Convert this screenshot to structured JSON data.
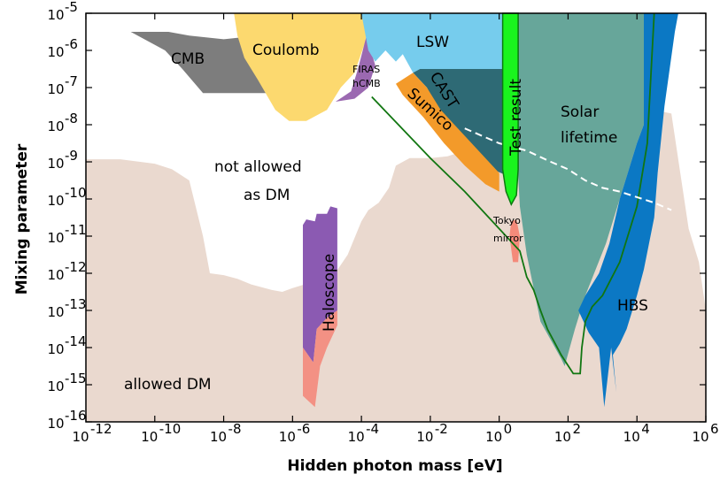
{
  "chart_data": {
    "type": "area",
    "xlabel": "Hidden photon mass [eV]",
    "ylabel": "Mixing parameter",
    "x_scale": "log",
    "y_scale": "log",
    "xlim": [
      1e-12,
      1000000.0
    ],
    "ylim": [
      1e-16,
      1e-05
    ],
    "x_ticks": [
      {
        "exp": "-12",
        "value": 1e-12
      },
      {
        "exp": "-10",
        "value": 1e-10
      },
      {
        "exp": "-8",
        "value": 1e-08
      },
      {
        "exp": "-6",
        "value": 1e-06
      },
      {
        "exp": "-4",
        "value": 0.0001
      },
      {
        "exp": "-2",
        "value": 0.01
      },
      {
        "exp": "0",
        "value": 1
      },
      {
        "exp": "2",
        "value": 100.0
      },
      {
        "exp": "4",
        "value": 10000.0
      },
      {
        "exp": "6",
        "value": 1000000.0
      }
    ],
    "y_ticks": [
      {
        "exp": "-5",
        "value": 1e-05
      },
      {
        "exp": "-6",
        "value": 1e-06
      },
      {
        "exp": "-7",
        "value": 1e-07
      },
      {
        "exp": "-8",
        "value": 1e-08
      },
      {
        "exp": "-9",
        "value": 1e-09
      },
      {
        "exp": "-10",
        "value": 1e-10
      },
      {
        "exp": "-11",
        "value": 1e-11
      },
      {
        "exp": "-12",
        "value": 1e-12
      },
      {
        "exp": "-13",
        "value": 1e-13
      },
      {
        "exp": "-14",
        "value": 1e-14
      },
      {
        "exp": "-15",
        "value": 1e-15
      },
      {
        "exp": "-16",
        "value": 1e-16
      }
    ],
    "tick_base": "10",
    "regions": [
      {
        "label": "allowed DM",
        "color": "#ead9cf",
        "points": [
          [
            -12,
            -8.93
          ],
          [
            -11,
            -8.93
          ],
          [
            -10,
            -9.05
          ],
          [
            -9.5,
            -9.2
          ],
          [
            -9,
            -9.5
          ],
          [
            -8.6,
            -11
          ],
          [
            -8.4,
            -12
          ],
          [
            -8,
            -12.05
          ],
          [
            -7.6,
            -12.15
          ],
          [
            -7.2,
            -12.3
          ],
          [
            -6.6,
            -12.45
          ],
          [
            -6.3,
            -12.5
          ],
          [
            -6,
            -12.4
          ],
          [
            -5.3,
            -12.2
          ],
          [
            -4.8,
            -12.05
          ],
          [
            -4.4,
            -11.5
          ],
          [
            -4.0,
            -10.6
          ],
          [
            -3.8,
            -10.3
          ],
          [
            -3.5,
            -10.1
          ],
          [
            -3.2,
            -9.7
          ],
          [
            -3.0,
            -9.1
          ],
          [
            -2.6,
            -8.9
          ],
          [
            -2,
            -8.9
          ],
          [
            -1.5,
            -8.85
          ],
          [
            -1,
            -8.7
          ],
          [
            -0.3,
            -8.3
          ],
          [
            0,
            -8.1
          ],
          [
            0.5,
            -7.9
          ],
          [
            1,
            -7.75
          ],
          [
            2,
            -7.6
          ],
          [
            3,
            -7.45
          ],
          [
            4,
            -7.5
          ],
          [
            5,
            -7.7
          ],
          [
            5.5,
            -10.8
          ],
          [
            5.8,
            -11.7
          ],
          [
            6,
            -13
          ],
          [
            6,
            -16
          ],
          [
            -12,
            -16
          ]
        ]
      },
      {
        "label": "CMB",
        "color": "#7d7d7d",
        "points": [
          [
            -10.7,
            -5.5
          ],
          [
            -9.6,
            -5.5
          ],
          [
            -9.0,
            -5.6
          ],
          [
            -8.0,
            -5.7
          ],
          [
            -7.0,
            -5.6
          ],
          [
            -6.6,
            -6.0
          ],
          [
            -6.7,
            -6.4
          ],
          [
            -6.5,
            -6.9
          ],
          [
            -6.6,
            -7.15
          ],
          [
            -8.6,
            -7.15
          ],
          [
            -9.2,
            -6.5
          ],
          [
            -9.7,
            -6.0
          ]
        ]
      },
      {
        "label": "Coulomb",
        "color": "#fcd96f",
        "points": [
          [
            -7.7,
            -5.0
          ],
          [
            -3.9,
            -5.0
          ],
          [
            -3.8,
            -5.3
          ],
          [
            -3.9,
            -5.8
          ],
          [
            -4.2,
            -6.6
          ],
          [
            -4.6,
            -7.0
          ],
          [
            -5.0,
            -7.6
          ],
          [
            -5.6,
            -7.9
          ],
          [
            -6.1,
            -7.9
          ],
          [
            -6.5,
            -7.6
          ],
          [
            -7.0,
            -6.8
          ],
          [
            -7.4,
            -6.2
          ],
          [
            -7.6,
            -5.6
          ]
        ]
      },
      {
        "label": "FIRAS hCMB",
        "color": "#9b69b1",
        "points": [
          [
            -3.85,
            -5.6
          ],
          [
            -3.6,
            -6.4
          ],
          [
            -3.8,
            -7.0
          ],
          [
            -4.2,
            -7.3
          ],
          [
            -4.75,
            -7.38
          ],
          [
            -4.3,
            -7.1
          ],
          [
            -4.1,
            -6.5
          ]
        ]
      },
      {
        "label": "LSW",
        "color": "#76cced",
        "points": [
          [
            -4.0,
            -5.0
          ],
          [
            0.3,
            -5.0
          ],
          [
            0.3,
            -6.5
          ],
          [
            -2.3,
            -6.5
          ],
          [
            -2.5,
            -6.6
          ],
          [
            -2.8,
            -6.1
          ],
          [
            -3.0,
            -6.3
          ],
          [
            -3.3,
            -6.0
          ],
          [
            -3.6,
            -6.3
          ],
          [
            -3.8,
            -6.0
          ]
        ]
      },
      {
        "label": "CAST",
        "color": "#2e6a75",
        "points": [
          [
            -2.3,
            -6.5
          ],
          [
            0.3,
            -6.5
          ],
          [
            0.3,
            -9.4
          ],
          [
            -0.2,
            -9.2
          ],
          [
            -1.0,
            -8.5
          ],
          [
            -1.7,
            -7.7
          ],
          [
            -2.1,
            -7.0
          ],
          [
            -2.5,
            -6.6
          ]
        ]
      },
      {
        "label": "Sumico",
        "color": "#f39a2a",
        "points": [
          [
            -2.5,
            -6.6
          ],
          [
            -2.1,
            -7.0
          ],
          [
            -1.7,
            -7.6
          ],
          [
            -1.0,
            -8.3
          ],
          [
            -0.3,
            -9.0
          ],
          [
            0,
            -9.3
          ],
          [
            0,
            -9.8
          ],
          [
            -0.4,
            -9.6
          ],
          [
            -1.0,
            -9.1
          ],
          [
            -1.6,
            -8.5
          ],
          [
            -2.2,
            -7.8
          ],
          [
            -2.8,
            -7.2
          ],
          [
            -3.0,
            -6.9
          ]
        ]
      },
      {
        "label": "Solar lifetime",
        "color": "#67a69a",
        "points": [
          [
            0.4,
            -5.0
          ],
          [
            4.2,
            -5.0
          ],
          [
            4.2,
            -8.0
          ],
          [
            4.0,
            -8.5
          ],
          [
            3.5,
            -10.0
          ],
          [
            3.1,
            -11.2
          ],
          [
            2.5,
            -12.6
          ],
          [
            2.2,
            -13.5
          ],
          [
            1.9,
            -14.5
          ],
          [
            1.8,
            -14.3
          ],
          [
            1.2,
            -13.3
          ],
          [
            0.8,
            -11.5
          ],
          [
            0.6,
            -10.2
          ],
          [
            0.5,
            -8.5
          ],
          [
            0.4,
            -7.5
          ],
          [
            0.3,
            -6.5
          ]
        ]
      },
      {
        "label": "HBS",
        "color": "#0b78c4",
        "points": [
          [
            4.2,
            -5.0
          ],
          [
            5.2,
            -5.0
          ],
          [
            5.1,
            -5.5
          ],
          [
            4.8,
            -7.5
          ],
          [
            4.6,
            -9.3
          ],
          [
            4.5,
            -10.5
          ],
          [
            4.2,
            -11.9
          ],
          [
            4.0,
            -12.6
          ],
          [
            3.7,
            -13.5
          ],
          [
            3.5,
            -13.9
          ],
          [
            3.3,
            -14.2
          ],
          [
            3.4,
            -15.2
          ],
          [
            3.25,
            -14.0
          ],
          [
            3.05,
            -15.6
          ],
          [
            2.9,
            -14.0
          ],
          [
            2.6,
            -13.6
          ],
          [
            2.3,
            -13.0
          ],
          [
            2.5,
            -12.6
          ],
          [
            2.9,
            -12.0
          ],
          [
            3.2,
            -11.2
          ],
          [
            3.5,
            -10.0
          ],
          [
            4.0,
            -8.5
          ],
          [
            4.2,
            -8.0
          ]
        ]
      },
      {
        "label": "Haloscope",
        "color": "#8b5ab2",
        "points": [
          [
            -5.7,
            -10.7
          ],
          [
            -5.6,
            -10.55
          ],
          [
            -5.35,
            -10.6
          ],
          [
            -5.3,
            -10.4
          ],
          [
            -5.0,
            -10.4
          ],
          [
            -4.9,
            -10.2
          ],
          [
            -4.7,
            -10.25
          ],
          [
            -4.7,
            -13.0
          ],
          [
            -5.0,
            -13.2
          ],
          [
            -5.3,
            -13.5
          ],
          [
            -5.4,
            -14.4
          ],
          [
            -5.7,
            -14.0
          ]
        ]
      },
      {
        "label": "Haloscope-limit",
        "color": "#f39184",
        "points": [
          [
            -5.7,
            -14.0
          ],
          [
            -5.4,
            -14.4
          ],
          [
            -5.3,
            -13.5
          ],
          [
            -5.0,
            -13.2
          ],
          [
            -4.7,
            -13.0
          ],
          [
            -4.7,
            -13.4
          ],
          [
            -5.0,
            -14.0
          ],
          [
            -5.2,
            -14.5
          ],
          [
            -5.35,
            -15.6
          ],
          [
            -5.7,
            -15.3
          ]
        ]
      },
      {
        "label": "Tokyo mirror",
        "color": "#f48a7a",
        "points": [
          [
            0.35,
            -10.6
          ],
          [
            0.5,
            -10.55
          ],
          [
            0.6,
            -11.0
          ],
          [
            0.55,
            -11.7
          ],
          [
            0.4,
            -11.7
          ],
          [
            0.3,
            -11.0
          ]
        ]
      }
    ],
    "test_result": {
      "label": "Test result",
      "color": "#1af41e",
      "points": [
        [
          0.1,
          -5.0
        ],
        [
          0.55,
          -5.0
        ],
        [
          0.55,
          -9.2
        ],
        [
          0.5,
          -9.9
        ],
        [
          0.35,
          -10.15
        ],
        [
          0.2,
          -9.8
        ],
        [
          0.1,
          -9.2
        ]
      ]
    },
    "lines": [
      {
        "name": "green-outline",
        "color": "#117611",
        "dash": false,
        "points": [
          [
            -3.7,
            -7.25
          ],
          [
            -2.0,
            -8.9
          ],
          [
            -1.0,
            -9.8
          ],
          [
            0.6,
            -11.4
          ],
          [
            0.8,
            -12.1
          ],
          [
            1.0,
            -12.45
          ],
          [
            1.2,
            -13.0
          ],
          [
            1.4,
            -13.5
          ],
          [
            1.8,
            -14.2
          ],
          [
            2.15,
            -14.7
          ],
          [
            2.35,
            -14.7
          ],
          [
            2.4,
            -14.0
          ],
          [
            2.5,
            -13.3
          ],
          [
            2.7,
            -12.9
          ],
          [
            3.0,
            -12.6
          ],
          [
            3.5,
            -11.7
          ],
          [
            4.0,
            -10.2
          ],
          [
            4.3,
            -8.5
          ],
          [
            4.5,
            -5.0
          ]
        ]
      },
      {
        "name": "white-dashed",
        "color": "#ffffff",
        "dash": true,
        "points": [
          [
            -1.0,
            -8.1
          ],
          [
            0,
            -8.5
          ],
          [
            0.8,
            -8.7
          ],
          [
            1.5,
            -9.0
          ],
          [
            2.0,
            -9.2
          ],
          [
            2.5,
            -9.5
          ],
          [
            3.0,
            -9.7
          ],
          [
            3.5,
            -9.8
          ],
          [
            4.0,
            -9.95
          ],
          [
            4.5,
            -10.1
          ],
          [
            5.0,
            -10.3
          ]
        ]
      }
    ],
    "annotations": {
      "cmb": "CMB",
      "coulomb": "Coulomb",
      "firas_1": "FIRAS",
      "firas_2": "hCMB",
      "lsw": "LSW",
      "cast": "CAST",
      "sumico": "Sumico",
      "test_result": "Test result",
      "solar_1": "Solar",
      "solar_2": "lifetime",
      "not_allowed_1": "not allowed",
      "not_allowed_2": "as DM",
      "tokyo_1": "Tokyo",
      "tokyo_2": "mirror",
      "haloscope": "Haloscope",
      "hbs": "HBS",
      "allowed_dm": "allowed DM"
    }
  }
}
